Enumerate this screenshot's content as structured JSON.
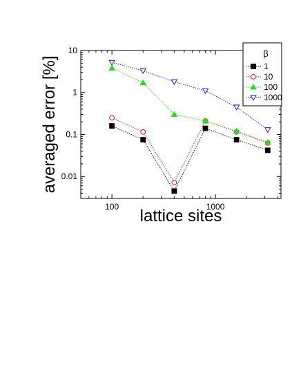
{
  "chart_data": {
    "type": "line",
    "x_scale": "log",
    "y_scale": "log",
    "xlabel": "lattice sites",
    "ylabel": "averaged error [%]",
    "xlim": [
      50,
      4300
    ],
    "ylim": [
      0.003,
      10
    ],
    "x_ticks": [
      {
        "value": 100,
        "label": "100"
      },
      {
        "value": 1000,
        "label": "1000"
      }
    ],
    "y_ticks": [
      {
        "value": 0.01,
        "label": "0.01"
      },
      {
        "value": 0.1,
        "label": "0.1"
      },
      {
        "value": 1,
        "label": "1"
      },
      {
        "value": 10,
        "label": "10"
      }
    ],
    "legend": {
      "title": "β",
      "position": "top-right"
    },
    "x": [
      100,
      200,
      400,
      800,
      1600,
      3200
    ],
    "series": [
      {
        "name": "1",
        "values": [
          0.16,
          0.075,
          0.0045,
          0.14,
          0.075,
          0.042
        ],
        "color": "#000000",
        "marker": "square-filled"
      },
      {
        "name": "10",
        "values": [
          0.25,
          0.115,
          0.0072,
          0.21,
          0.115,
          0.063
        ],
        "color": "#e8141e",
        "marker": "circle-open"
      },
      {
        "name": "100",
        "values": [
          3.8,
          1.7,
          0.3,
          0.21,
          0.12,
          0.065
        ],
        "color": "#1fe01f",
        "marker": "triangle-up-filled"
      },
      {
        "name": "1000",
        "values": [
          5.2,
          3.3,
          1.8,
          1.1,
          0.45,
          0.13
        ],
        "color": "#1a1ae6",
        "marker": "triangle-down-open"
      }
    ]
  }
}
